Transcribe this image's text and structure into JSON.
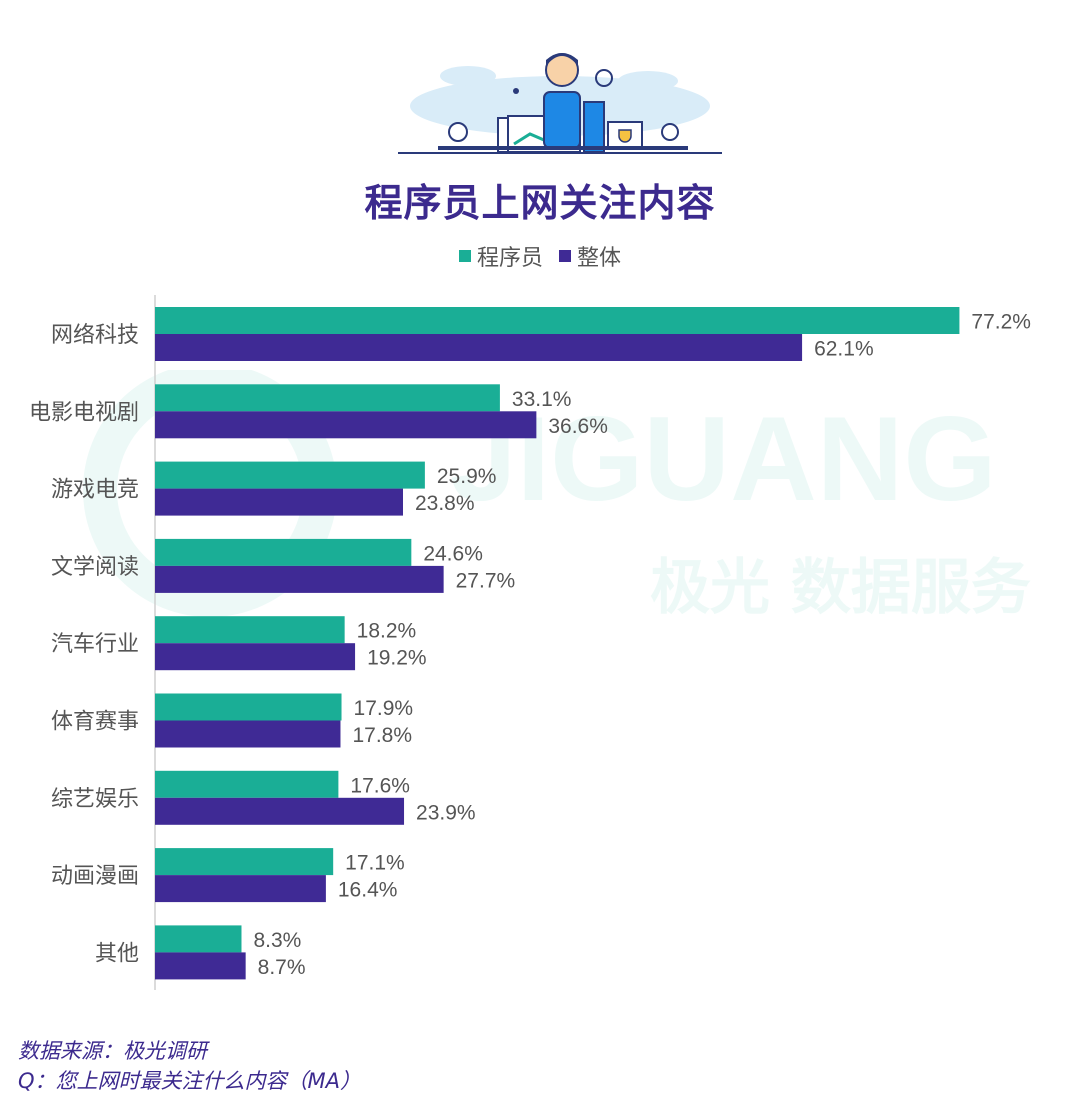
{
  "header": {
    "illustration_icon": "programmer-city-illustration",
    "title": "程序员上网关注内容"
  },
  "watermark": {
    "text": "JIGUANG",
    "subtext": "极光 数据服务"
  },
  "colors": {
    "programmer": "#1aae96",
    "overall": "#3f2a95",
    "title": "#3c2a8e",
    "label": "#555555"
  },
  "chart_data": {
    "type": "bar",
    "orientation": "horizontal",
    "title": "程序员上网关注内容",
    "categories": [
      "网络科技",
      "电影电视剧",
      "游戏电竞",
      "文学阅读",
      "汽车行业",
      "体育赛事",
      "综艺娱乐",
      "动画漫画",
      "其他"
    ],
    "series": [
      {
        "name": "程序员",
        "values": [
          77.2,
          33.1,
          25.9,
          24.6,
          18.2,
          17.9,
          17.6,
          17.1,
          8.3
        ]
      },
      {
        "name": "整体",
        "values": [
          62.1,
          36.6,
          23.8,
          27.7,
          19.2,
          17.8,
          23.9,
          16.4,
          8.7
        ]
      }
    ],
    "value_format": "percent_1dp",
    "xlim": [
      0,
      80
    ],
    "grid": false,
    "legend_position": "top-center"
  },
  "footer": {
    "source": "数据来源：极光调研",
    "question": "Q：您上网时最关注什么内容（MA）"
  }
}
